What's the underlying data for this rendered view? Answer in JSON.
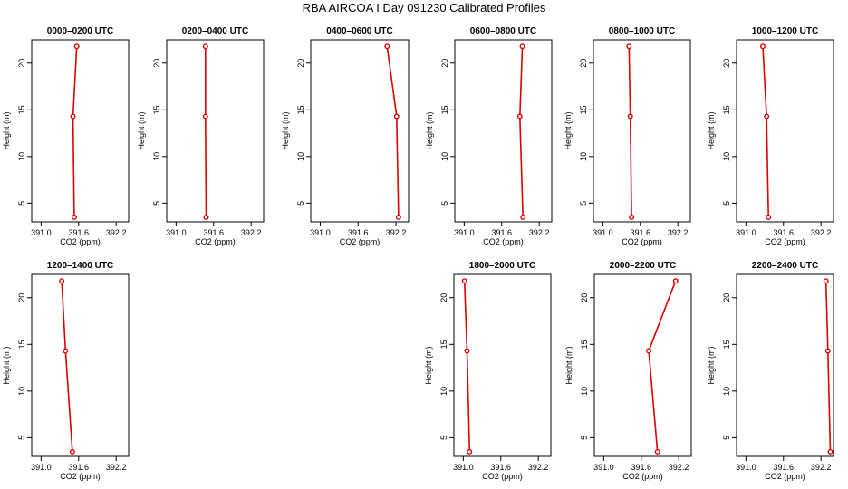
{
  "title": "RBA AIRCOA I  Day 091230  Calibrated Profiles",
  "colors": {
    "series": "#dd0000",
    "axis": "#000000"
  },
  "chart_data": [
    {
      "type": "line",
      "title": "0000–0200 UTC",
      "xlabel": "CO2 (ppm)",
      "ylabel": "Height (m)",
      "xlim": [
        390.85,
        392.4
      ],
      "ylim": [
        3,
        22.5
      ],
      "xticks": [
        391.0,
        391.6,
        392.2
      ],
      "xtick_labels": [
        "391.0",
        "391.6",
        "392.2"
      ],
      "yticks": [
        5,
        10,
        15,
        20
      ],
      "ytick_labels": [
        "5",
        "10",
        "15",
        "20"
      ],
      "x": [
        391.53,
        391.51,
        391.57
      ],
      "y": [
        3.5,
        14.3,
        21.8
      ],
      "grid": false
    },
    {
      "type": "line",
      "title": "0200–0400 UTC",
      "xlabel": "CO2 (ppm)",
      "ylabel": "Height (m)",
      "xlim": [
        390.85,
        392.4
      ],
      "ylim": [
        3,
        22.5
      ],
      "xticks": [
        391.0,
        391.6,
        392.2
      ],
      "xtick_labels": [
        "391.0",
        "391.6",
        "392.2"
      ],
      "yticks": [
        5,
        10,
        15,
        20
      ],
      "ytick_labels": [
        "5",
        "10",
        "15",
        "20"
      ],
      "x": [
        391.48,
        391.47,
        391.47
      ],
      "y": [
        3.5,
        14.3,
        21.8
      ],
      "grid": false
    },
    {
      "type": "line",
      "title": "0400–0600 UTC",
      "xlabel": "CO2 (ppm)",
      "ylabel": "Height (m)",
      "xlim": [
        390.85,
        392.4
      ],
      "ylim": [
        3,
        22.5
      ],
      "xticks": [
        391.0,
        391.6,
        392.2
      ],
      "xtick_labels": [
        "391.0",
        "391.6",
        "392.2"
      ],
      "yticks": [
        5,
        10,
        15,
        20
      ],
      "ytick_labels": [
        "5",
        "10",
        "15",
        "20"
      ],
      "x": [
        392.24,
        392.21,
        392.06
      ],
      "y": [
        3.5,
        14.3,
        21.8
      ],
      "grid": false
    },
    {
      "type": "line",
      "title": "0600–0800 UTC",
      "xlabel": "CO2 (ppm)",
      "ylabel": "Height (m)",
      "xlim": [
        390.85,
        392.4
      ],
      "ylim": [
        3,
        22.5
      ],
      "xticks": [
        391.0,
        391.6,
        392.2
      ],
      "xtick_labels": [
        "391.0",
        "391.6",
        "392.2"
      ],
      "yticks": [
        5,
        10,
        15,
        20
      ],
      "ytick_labels": [
        "5",
        "10",
        "15",
        "20"
      ],
      "x": [
        391.94,
        391.89,
        391.93
      ],
      "y": [
        3.5,
        14.3,
        21.8
      ],
      "grid": false
    },
    {
      "type": "line",
      "title": "0800–1000 UTC",
      "xlabel": "CO2 (ppm)",
      "ylabel": "Height (m)",
      "xlim": [
        390.85,
        392.4
      ],
      "ylim": [
        3,
        22.5
      ],
      "xticks": [
        391.0,
        391.6,
        392.2
      ],
      "xtick_labels": [
        "391.0",
        "391.6",
        "392.2"
      ],
      "yticks": [
        5,
        10,
        15,
        20
      ],
      "ytick_labels": [
        "5",
        "10",
        "15",
        "20"
      ],
      "x": [
        391.46,
        391.44,
        391.42
      ],
      "y": [
        3.5,
        14.3,
        21.8
      ],
      "grid": false
    },
    {
      "type": "line",
      "title": "1000–1200 UTC",
      "xlabel": "CO2 (ppm)",
      "ylabel": "Height (m)",
      "xlim": [
        390.85,
        392.4
      ],
      "ylim": [
        3,
        22.5
      ],
      "xticks": [
        391.0,
        391.6,
        392.2
      ],
      "xtick_labels": [
        "391.0",
        "391.6",
        "392.2"
      ],
      "yticks": [
        5,
        10,
        15,
        20
      ],
      "ytick_labels": [
        "5",
        "10",
        "15",
        "20"
      ],
      "x": [
        391.36,
        391.33,
        391.27
      ],
      "y": [
        3.5,
        14.3,
        21.8
      ],
      "grid": false
    },
    {
      "type": "line",
      "title": "1200–1400 UTC",
      "xlabel": "CO2 (ppm)",
      "ylabel": "Height (m)",
      "xlim": [
        390.85,
        392.4
      ],
      "ylim": [
        3,
        22.5
      ],
      "xticks": [
        391.0,
        391.6,
        392.2
      ],
      "xtick_labels": [
        "391.0",
        "391.6",
        "392.2"
      ],
      "yticks": [
        5,
        10,
        15,
        20
      ],
      "ytick_labels": [
        "5",
        "10",
        "15",
        "20"
      ],
      "x": [
        391.5,
        391.39,
        391.33
      ],
      "y": [
        3.5,
        14.3,
        21.8
      ],
      "grid": false
    },
    {
      "type": "line",
      "title": "1800–2000 UTC",
      "xlabel": "CO2 (ppm)",
      "ylabel": "Height (m)",
      "xlim": [
        390.85,
        392.4
      ],
      "ylim": [
        3,
        22.5
      ],
      "xticks": [
        391.0,
        391.6,
        392.2
      ],
      "xtick_labels": [
        "391.0",
        "391.6",
        "392.2"
      ],
      "yticks": [
        5,
        10,
        15,
        20
      ],
      "ytick_labels": [
        "5",
        "10",
        "15",
        "20"
      ],
      "x": [
        391.1,
        391.06,
        391.02
      ],
      "y": [
        3.5,
        14.3,
        21.8
      ],
      "grid": false
    },
    {
      "type": "line",
      "title": "2000–2200 UTC",
      "xlabel": "CO2 (ppm)",
      "ylabel": "Height (m)",
      "xlim": [
        390.85,
        392.4
      ],
      "ylim": [
        3,
        22.5
      ],
      "xticks": [
        391.0,
        391.6,
        392.2
      ],
      "xtick_labels": [
        "391.0",
        "391.6",
        "392.2"
      ],
      "yticks": [
        5,
        10,
        15,
        20
      ],
      "ytick_labels": [
        "5",
        "10",
        "15",
        "20"
      ],
      "x": [
        391.86,
        391.72,
        392.15
      ],
      "y": [
        3.5,
        14.3,
        21.8
      ],
      "grid": false
    },
    {
      "type": "line",
      "title": "2200–2400 UTC",
      "xlabel": "CO2 (ppm)",
      "ylabel": "Height (m)",
      "xlim": [
        390.85,
        392.4
      ],
      "ylim": [
        3,
        22.5
      ],
      "xticks": [
        391.0,
        391.6,
        392.2
      ],
      "xtick_labels": [
        "391.0",
        "391.6",
        "392.2"
      ],
      "yticks": [
        5,
        10,
        15,
        20
      ],
      "ytick_labels": [
        "5",
        "10",
        "15",
        "20"
      ],
      "x": [
        392.35,
        392.31,
        392.28
      ],
      "y": [
        3.5,
        14.3,
        21.8
      ],
      "grid": false
    }
  ]
}
